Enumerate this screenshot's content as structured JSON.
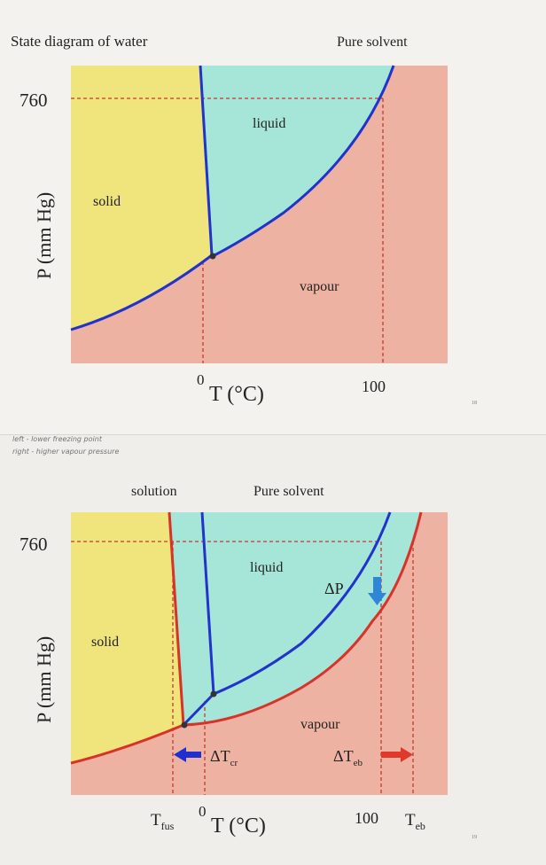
{
  "colors": {
    "solid": "#f0e47c",
    "liquid": "#a6e6d8",
    "vapour": "#eeb2a2",
    "pure_curve": "#2233cc",
    "solution_curve": "#d83328",
    "guide": "#c43a2e",
    "arrow_blue": "#1f2fd0",
    "arrow_red": "#e0392b",
    "arrow_dp": "#2f86d6"
  },
  "slide1": {
    "title": "State diagram of water",
    "legend_pure": "Pure solvent",
    "p760": "760",
    "ylabel": "P (mm Hg)",
    "region_solid": "solid",
    "region_liquid": "liquid",
    "region_vapour": "vapour",
    "tick_zero": "0",
    "xlabel": "T (°C)",
    "tick_100": "100",
    "page_number": "18"
  },
  "slide2": {
    "notes_line1": "left - lower freezing point",
    "notes_line2": "right - higher vapour pressure",
    "legend_solution": "solution",
    "legend_pure": "Pure solvent",
    "p760": "760",
    "ylabel": "P (mm Hg)",
    "region_solid": "solid",
    "region_liquid": "liquid",
    "region_vapour": "vapour",
    "delta_p": "ΔP",
    "delta_tcr": "ΔT",
    "delta_tcr_sub": "cr",
    "delta_teb": "ΔT",
    "delta_teb_sub": "eb",
    "tick_tfus": "T",
    "tick_tfus_sub": "fus",
    "tick_zero": "0",
    "xlabel": "T (°C)",
    "tick_100": "100",
    "tick_teb": "T",
    "tick_teb_sub": "eb",
    "page_number": "19"
  }
}
